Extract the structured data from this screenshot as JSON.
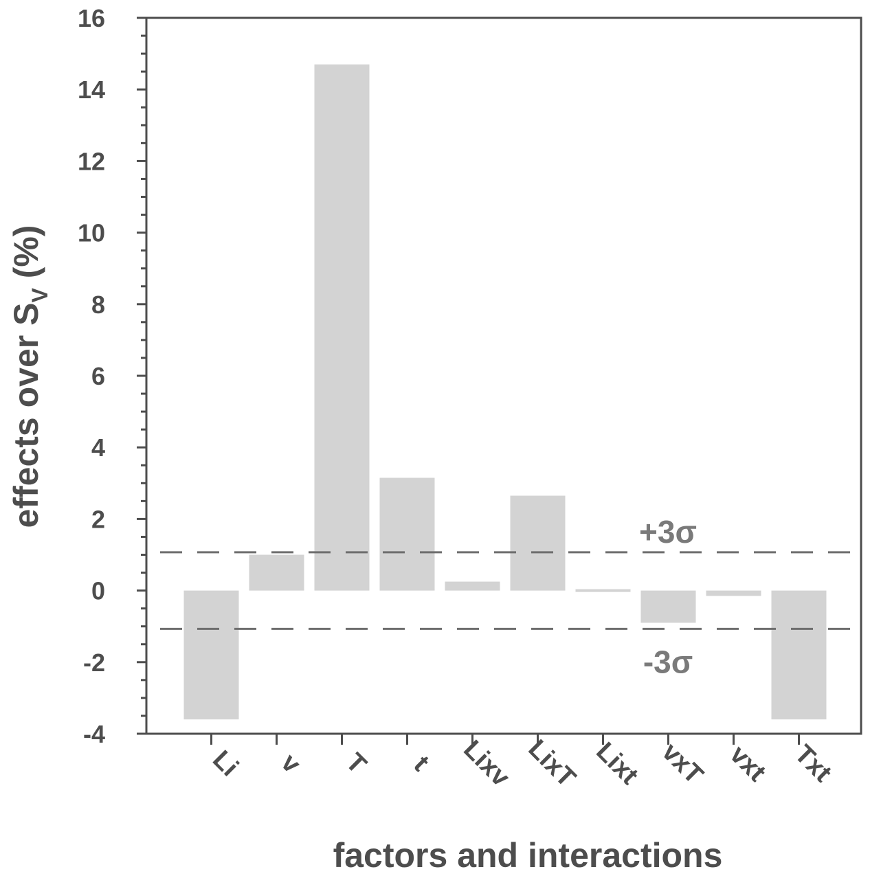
{
  "chart_data": {
    "type": "bar",
    "title": "",
    "xlabel": "factors and interactions",
    "ylabel_main": "effects over S",
    "ylabel_sub": "V",
    "ylabel_suffix": " (%)",
    "categories": [
      "Li",
      "v",
      "T",
      "t",
      "Lixv",
      "LixT",
      "Lixt",
      "vxT",
      "vxt",
      "Txt"
    ],
    "values": [
      -3.6,
      1.0,
      14.7,
      3.15,
      0.25,
      2.65,
      0.05,
      -0.9,
      -0.15,
      -3.6
    ],
    "ylim": [
      -4,
      16
    ],
    "yticks": [
      -4,
      -2,
      0,
      2,
      4,
      6,
      8,
      10,
      12,
      14,
      16
    ],
    "ytick_labels": [
      "-4",
      "-2",
      "0",
      "2",
      "4",
      "6",
      "8",
      "10",
      "12",
      "14",
      "16"
    ],
    "reference_lines": [
      {
        "label": "+3σ",
        "value": 1.07
      },
      {
        "label": "-3σ",
        "value": -1.07
      }
    ],
    "grid": false,
    "legend": "none",
    "colors": {
      "bar": "#d3d3d3",
      "axis": "#4d4d4d",
      "reference": "#6e6e6e"
    }
  }
}
